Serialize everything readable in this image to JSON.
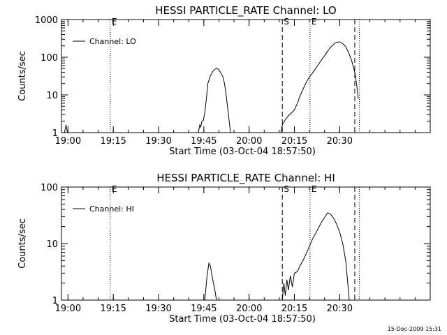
{
  "chart_data": [
    {
      "type": "line",
      "title": "HESSI PARTICLE_RATE Channel: LO",
      "xlabel": "Start Time (03-Oct-04 18:57:50)",
      "ylabel": "Counts/sec",
      "yscale": "log",
      "ylim": [
        1,
        1000
      ],
      "xlim": [
        "18:57:50",
        "21:00:00"
      ],
      "x_tick_labels": [
        "19:00",
        "19:15",
        "19:30",
        "19:45",
        "20:00",
        "20:15",
        "20:30"
      ],
      "y_tick_labels": [
        "1",
        "10",
        "100",
        "1000"
      ],
      "legend": {
        "position": "top-left",
        "entries": [
          "Channel: LO"
        ]
      },
      "vertical_markers": [
        {
          "time": "19:14:00",
          "style": "dotted",
          "label": "E"
        },
        {
          "time": "20:11:00",
          "style": "dashed",
          "label": "S"
        },
        {
          "time": "20:20:10",
          "style": "dotted",
          "label": "E"
        },
        {
          "time": "20:35:00",
          "style": "dashed",
          "label": ""
        },
        {
          "time": "20:36:30",
          "style": "dotted",
          "label": ""
        }
      ],
      "series": [
        {
          "name": "Channel: LO",
          "segments": [
            [
              [
                "18:58:50",
                1.0
              ],
              [
                "18:59:20",
                1.6
              ],
              [
                "18:59:50",
                1.0
              ]
            ],
            [
              [
                "19:43:10",
                1.0
              ],
              [
                "19:43:40",
                1.6
              ],
              [
                "19:44:00",
                1.4
              ],
              [
                "19:44:20",
                2.0
              ],
              [
                "19:44:50",
                2.1
              ],
              [
                "19:45:20",
                3.5
              ],
              [
                "19:45:50",
                8
              ],
              [
                "19:46:20",
                20
              ],
              [
                "19:47:10",
                32
              ],
              [
                "19:48:00",
                42
              ],
              [
                "19:48:40",
                48
              ],
              [
                "19:49:20",
                51
              ],
              [
                "19:50:00",
                46
              ],
              [
                "19:50:40",
                38
              ],
              [
                "19:51:20",
                30
              ],
              [
                "19:51:50",
                20
              ],
              [
                "19:52:20",
                11
              ],
              [
                "19:52:50",
                5
              ],
              [
                "19:53:20",
                2.2
              ],
              [
                "19:53:50",
                1.0
              ]
            ],
            [
              [
                "20:10:30",
                1.0
              ],
              [
                "20:11:00",
                1.6
              ],
              [
                "20:12:00",
                2.2
              ],
              [
                "20:13:00",
                2.8
              ],
              [
                "20:14:00",
                3.3
              ],
              [
                "20:15:00",
                4.0
              ],
              [
                "20:16:00",
                6
              ],
              [
                "20:17:00",
                10
              ],
              [
                "20:18:00",
                15
              ],
              [
                "20:19:00",
                22
              ],
              [
                "20:20:00",
                30
              ],
              [
                "20:21:00",
                38
              ],
              [
                "20:22:00",
                50
              ],
              [
                "20:23:00",
                65
              ],
              [
                "20:24:00",
                85
              ],
              [
                "20:25:00",
                110
              ],
              [
                "20:26:00",
                145
              ],
              [
                "20:27:00",
                185
              ],
              [
                "20:28:00",
                220
              ],
              [
                "20:29:00",
                250
              ],
              [
                "20:30:00",
                255
              ],
              [
                "20:31:00",
                230
              ],
              [
                "20:32:00",
                190
              ],
              [
                "20:33:00",
                130
              ],
              [
                "20:34:00",
                80
              ],
              [
                "20:35:00",
                40
              ],
              [
                "20:35:40",
                18
              ],
              [
                "20:36:10",
                8
              ]
            ]
          ]
        }
      ]
    },
    {
      "type": "line",
      "title": "HESSI PARTICLE_RATE Channel: HI",
      "xlabel": "Start Time (03-Oct-04 18:57:50)",
      "ylabel": "Counts/sec",
      "yscale": "log",
      "ylim": [
        1,
        100
      ],
      "xlim": [
        "18:57:50",
        "21:00:00"
      ],
      "x_tick_labels": [
        "19:00",
        "19:15",
        "19:30",
        "19:45",
        "20:00",
        "20:15",
        "20:30"
      ],
      "y_tick_labels": [
        "1",
        "10",
        "100"
      ],
      "legend": {
        "position": "top-left",
        "entries": [
          "Channel: HI"
        ]
      },
      "vertical_markers": [
        {
          "time": "19:14:00",
          "style": "dotted",
          "label": "E"
        },
        {
          "time": "20:11:00",
          "style": "dashed",
          "label": "S"
        },
        {
          "time": "20:20:10",
          "style": "dotted",
          "label": "E"
        },
        {
          "time": "20:35:00",
          "style": "dashed",
          "label": ""
        },
        {
          "time": "20:36:30",
          "style": "dotted",
          "label": ""
        }
      ],
      "series": [
        {
          "name": "Channel: HI",
          "segments": [
            [
              [
                "19:45:20",
                1.0
              ],
              [
                "19:46:00",
                2.5
              ],
              [
                "19:46:40",
                4.5
              ],
              [
                "19:47:10",
                4.0
              ],
              [
                "19:47:40",
                2.8
              ],
              [
                "19:48:10",
                2.0
              ],
              [
                "19:48:40",
                1.5
              ],
              [
                "19:49:10",
                1.0
              ]
            ],
            [
              [
                "20:11:00",
                1.0
              ],
              [
                "20:11:30",
                2.0
              ],
              [
                "20:12:00",
                1.2
              ],
              [
                "20:12:30",
                2.3
              ],
              [
                "20:13:00",
                1.5
              ],
              [
                "20:13:40",
                2.7
              ],
              [
                "20:14:20",
                1.7
              ],
              [
                "20:15:00",
                3.0
              ],
              [
                "20:16:00",
                3.2
              ],
              [
                "20:17:00",
                4.2
              ],
              [
                "20:18:00",
                5.2
              ],
              [
                "20:19:00",
                6.8
              ],
              [
                "20:20:00",
                9
              ],
              [
                "20:21:00",
                12
              ],
              [
                "20:22:00",
                15
              ],
              [
                "20:23:00",
                19
              ],
              [
                "20:24:00",
                24
              ],
              [
                "20:25:00",
                29
              ],
              [
                "20:26:00",
                35
              ],
              [
                "20:27:00",
                33
              ],
              [
                "20:28:00",
                28
              ],
              [
                "20:29:00",
                22
              ],
              [
                "20:30:00",
                16
              ],
              [
                "20:31:00",
                10
              ],
              [
                "20:32:00",
                5
              ],
              [
                "20:32:40",
                2
              ],
              [
                "20:33:10",
                1.0
              ]
            ]
          ]
        }
      ]
    }
  ],
  "timestamp": "15-Dec-2009 15:31"
}
